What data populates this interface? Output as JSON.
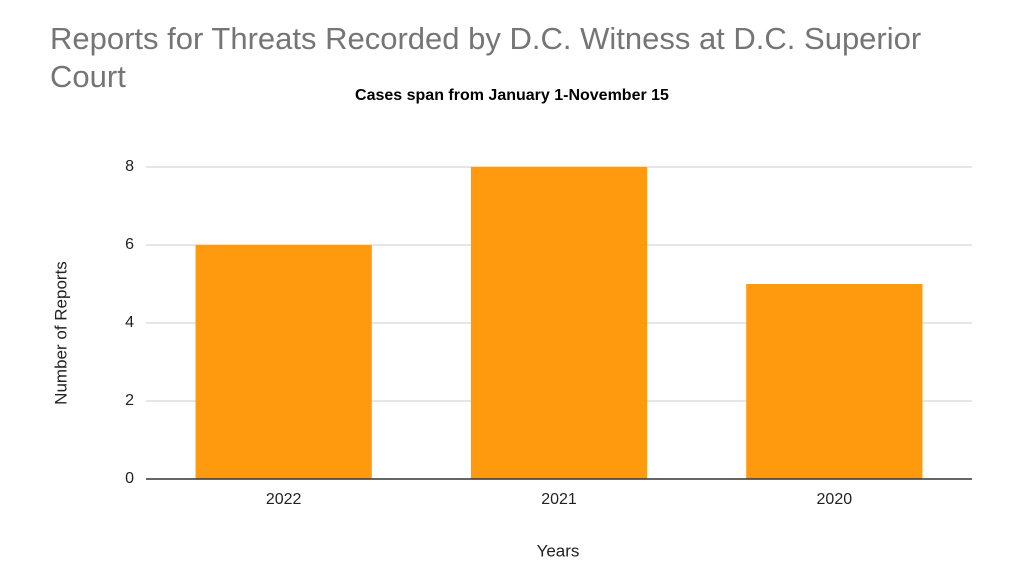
{
  "chart_data": {
    "type": "bar",
    "title": "Reports for Threats Recorded by D.C. Witness at D.C. Superior Court",
    "subtitle": "Cases span from January 1-November 15",
    "x_label": "Years",
    "y_label": "Number of Reports",
    "categories": [
      "2022",
      "2021",
      "2020"
    ],
    "values": [
      6,
      8,
      5
    ],
    "color": "#ff9a0e",
    "ylim": [
      0,
      8
    ],
    "yticks": [
      0,
      2,
      4,
      6,
      8
    ],
    "grid": true
  }
}
